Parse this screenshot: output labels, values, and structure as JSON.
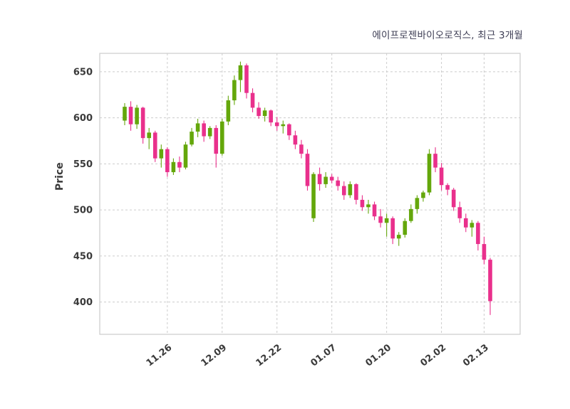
{
  "chart": {
    "title": "에이프로젠바이오로직스, 최근 3개월",
    "ylabel": "Price"
  },
  "chart_data": {
    "type": "candlestick",
    "title": "에이프로젠바이오로직스, 최근 3개월",
    "xlabel": "",
    "ylabel": "Price",
    "ylim": [
      365,
      670
    ],
    "yticks": [
      400,
      450,
      500,
      550,
      600,
      650
    ],
    "xticks": [
      {
        "index": 7,
        "label": "11.26"
      },
      {
        "index": 16,
        "label": "12.09"
      },
      {
        "index": 25,
        "label": "12.22"
      },
      {
        "index": 34,
        "label": "01.07"
      },
      {
        "index": 43,
        "label": "01.20"
      },
      {
        "index": 52,
        "label": "02.02"
      },
      {
        "index": 59,
        "label": "02.13"
      }
    ],
    "grid": true,
    "legend_position": "none",
    "colors": {
      "up": "#64a70b",
      "down": "#e9308c",
      "grid": "#cccccc",
      "spine": "#cccccc",
      "tick_text": "#3a3a3a",
      "title_text": "#3d3d54",
      "background": "#ffffff"
    },
    "ohlc_format": [
      "open",
      "high",
      "low",
      "close"
    ],
    "candles": [
      [
        597,
        616,
        592,
        612
      ],
      [
        612,
        618,
        586,
        593
      ],
      [
        593,
        614,
        588,
        611
      ],
      [
        611,
        612,
        572,
        578
      ],
      [
        578,
        589,
        566,
        584
      ],
      [
        584,
        586,
        552,
        556
      ],
      [
        556,
        571,
        546,
        566
      ],
      [
        566,
        568,
        536,
        541
      ],
      [
        541,
        556,
        538,
        552
      ],
      [
        552,
        558,
        541,
        546
      ],
      [
        546,
        574,
        544,
        571
      ],
      [
        571,
        589,
        569,
        585
      ],
      [
        585,
        599,
        579,
        594
      ],
      [
        594,
        597,
        574,
        580
      ],
      [
        580,
        591,
        577,
        589
      ],
      [
        589,
        592,
        546,
        561
      ],
      [
        561,
        599,
        559,
        596
      ],
      [
        596,
        624,
        592,
        619
      ],
      [
        619,
        646,
        614,
        641
      ],
      [
        641,
        661,
        628,
        657
      ],
      [
        657,
        659,
        621,
        627
      ],
      [
        627,
        632,
        606,
        611
      ],
      [
        611,
        617,
        599,
        602
      ],
      [
        602,
        611,
        596,
        608
      ],
      [
        608,
        609,
        591,
        595
      ],
      [
        595,
        601,
        586,
        591
      ],
      [
        591,
        597,
        583,
        593
      ],
      [
        593,
        594,
        576,
        581
      ],
      [
        581,
        586,
        566,
        571
      ],
      [
        571,
        576,
        556,
        561
      ],
      [
        561,
        566,
        521,
        526
      ],
      [
        491,
        541,
        487,
        539
      ],
      [
        539,
        546,
        521,
        528
      ],
      [
        528,
        541,
        524,
        536
      ],
      [
        536,
        539,
        529,
        532
      ],
      [
        532,
        536,
        521,
        526
      ],
      [
        526,
        531,
        511,
        516
      ],
      [
        516,
        531,
        513,
        528
      ],
      [
        528,
        529,
        506,
        511
      ],
      [
        511,
        516,
        499,
        503
      ],
      [
        503,
        511,
        496,
        506
      ],
      [
        506,
        509,
        489,
        493
      ],
      [
        493,
        501,
        481,
        486
      ],
      [
        486,
        496,
        471,
        491
      ],
      [
        491,
        493,
        463,
        469
      ],
      [
        469,
        476,
        461,
        473
      ],
      [
        473,
        491,
        470,
        488
      ],
      [
        488,
        506,
        486,
        501
      ],
      [
        501,
        516,
        496,
        513
      ],
      [
        513,
        521,
        509,
        519
      ],
      [
        519,
        566,
        516,
        561
      ],
      [
        561,
        568,
        541,
        546
      ],
      [
        546,
        551,
        521,
        527
      ],
      [
        527,
        529,
        516,
        522
      ],
      [
        522,
        524,
        499,
        503
      ],
      [
        503,
        509,
        486,
        491
      ],
      [
        491,
        496,
        476,
        481
      ],
      [
        481,
        489,
        471,
        486
      ],
      [
        486,
        488,
        456,
        463
      ],
      [
        463,
        471,
        441,
        446
      ],
      [
        446,
        448,
        386,
        401
      ]
    ]
  }
}
